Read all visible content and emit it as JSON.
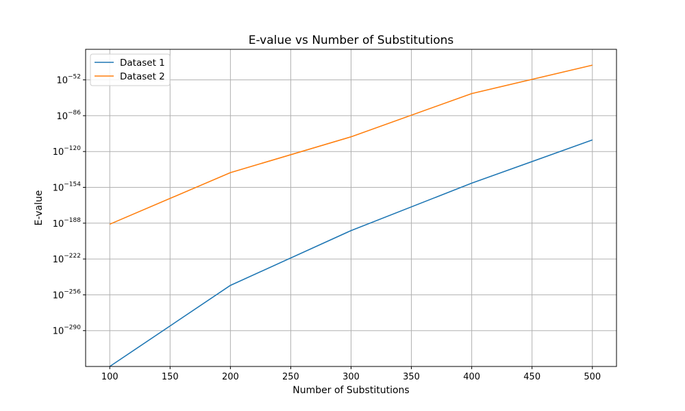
{
  "chart_data": {
    "type": "line",
    "title": "E-value vs Number of Substitutions",
    "xlabel": "Number of Substitutions",
    "ylabel": "E-value",
    "yscale": "log",
    "grid": true,
    "legend_position": "top-left",
    "x": [
      100,
      200,
      300,
      400,
      500
    ],
    "xlim": [
      80,
      520
    ],
    "ylim_exponent": [
      -324,
      -23
    ],
    "x_ticks": [
      "100",
      "150",
      "200",
      "250",
      "300",
      "350",
      "400",
      "450",
      "500"
    ],
    "y_tick_exponents": [
      -52,
      -86,
      -120,
      -154,
      -188,
      -222,
      -256,
      -290
    ],
    "series": [
      {
        "name": "Dataset 1",
        "color": "#1f77b4",
        "log10_values": [
          -324,
          -247,
          -195,
          -150,
          -109
        ]
      },
      {
        "name": "Dataset 2",
        "color": "#ff7f0e",
        "log10_values": [
          -189,
          -140,
          -106,
          -65,
          -38
        ]
      }
    ]
  }
}
